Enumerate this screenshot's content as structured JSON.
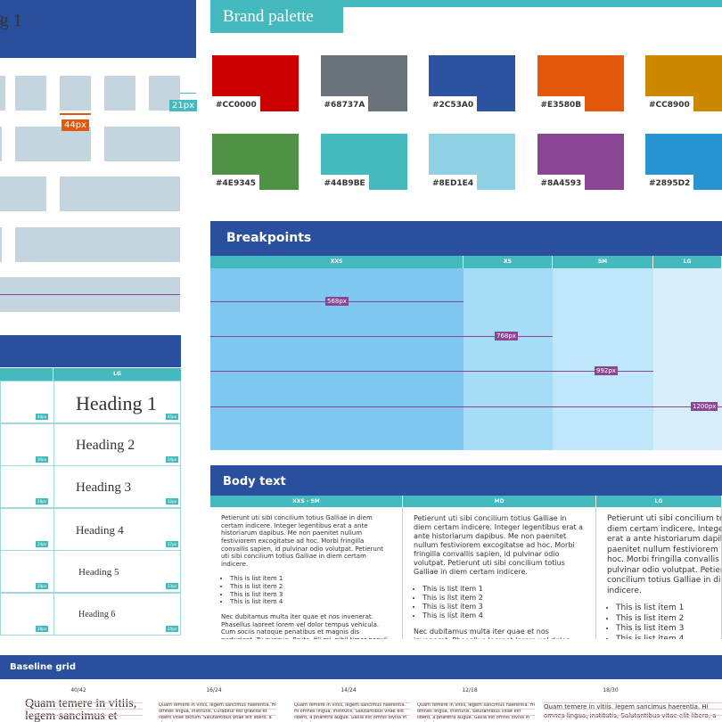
{
  "grid_diagram": {
    "labels": [
      "44px",
      "21px"
    ]
  },
  "brand_palette": {
    "title": "Brand palette",
    "swatches": [
      "#CC0000",
      "#68737A",
      "#2C53A0",
      "#E3580B",
      "#CC8900",
      "#4E9345",
      "#44B9BE",
      "#8ED1E4",
      "#8A4593",
      "#2895D2"
    ]
  },
  "breakpoints": {
    "title": "Breakpoints",
    "columns": [
      "XXS",
      "XS",
      "SM",
      "LG"
    ],
    "widths": [
      "568px",
      "768px",
      "992px",
      "1200px"
    ]
  },
  "headings": {
    "column": "LG",
    "rows": [
      {
        "text": "Heading 1",
        "sizes": [
          "40px",
          "45px"
        ]
      },
      {
        "text": "Heading 2",
        "sizes": [
          "30px",
          "34px"
        ]
      },
      {
        "text": "Heading 3",
        "sizes": [
          "28px",
          "32px"
        ]
      },
      {
        "text": "Heading 4",
        "sizes": [
          "24px",
          "27px"
        ]
      },
      {
        "text": "Heading 5",
        "sizes": [
          "20px",
          "23px"
        ]
      },
      {
        "text": "Heading 6",
        "sizes": [
          "18px",
          "20px"
        ]
      }
    ]
  },
  "body_text": {
    "title": "Body text",
    "columns": [
      "XXS - SM",
      "MD",
      "LG"
    ],
    "paragraph_1": "Petierunt uti sibi concilium totius Galliae in diem certam indicere. Integer legentibus erat a ante historiarum dapibus. Me non paenitet nullum festiviorem excogitatse ad hoc. Morbi fringilla convallis sapien, id pulvinar odio volutpat. Petierunt uti sibi concilium totius Galliae in diem certam indicere.",
    "list": [
      "This is list item 1",
      "This is list item 2",
      "This is list item 3",
      "This is list item 4"
    ],
    "paragraph_2": "Nec dubitamus multa iter quae et nos invenerat. Phasellus laoreet lorem vel dolor tempus vehicula. Cum sociis natoque penatibus et magnis dis parturient. Tu quoque, Brute, fili mi, nihil timor populi, nihil! At nos hinc posthac, sitientis piros Afros. Quam temere in vitiis, legem sancimus haerentia."
  },
  "baseline_grid": {
    "title": "Baseline grid",
    "columns": [
      {
        "label": "40/42",
        "text": "Quam temere in vitiis, legem sancimus et"
      },
      {
        "label": "16/24",
        "text": "Quam temere in vitiis, legem sancimus haerentia. Hi omnes lingua, institutis, Curabitur est gravida et libero vitae dictum. Salutantibus vitae elit libero, a pharetra augue."
      },
      {
        "label": "14/24",
        "text": "Quam temere in vitiis, legem sancimus haerentia. Hi omnes lingua, institutis, Salutantibus vitae elit libero, a pharetra augue. Gallia est omnis divisa in partes tres, quarum."
      },
      {
        "label": "12/18",
        "text": "Quam temere in vitiis, legem sancimus haerentia. Hi omnes lingua, institutis, Salutantibus vitae elit libero, a pharetra augue. Gallia est omnis divisa in partes tres, quarum."
      },
      {
        "label": "18/30",
        "text": "Quam temere in vitiis, legem sancimus haerentia. Hi omnes lingua, institutis, Salutantibus vitae elit libero, a pharetra augue."
      }
    ]
  }
}
